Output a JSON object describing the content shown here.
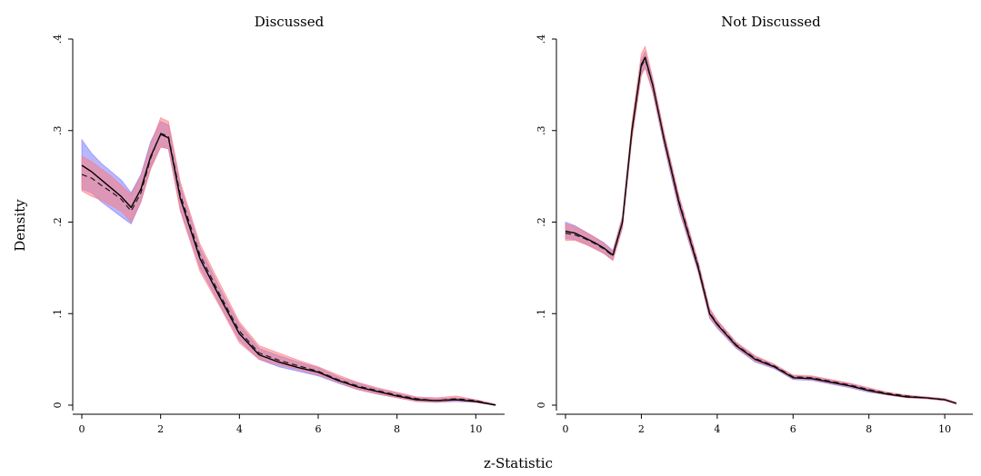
{
  "figure": {
    "shared_xlabel": "z-Statistic",
    "shared_ylabel": "Density"
  },
  "colors": {
    "band_blue": "#7b7bff",
    "band_red": "#ff7b7b",
    "band_overlap": "#a0529a",
    "line_solid": "#000000",
    "line_dashed": "#1a1a1a"
  },
  "chart_data": [
    {
      "type": "area",
      "title": "Discussed",
      "xlabel": "z-Statistic",
      "ylabel": "Density",
      "xlim": [
        0,
        10.5
      ],
      "ylim": [
        0,
        0.4
      ],
      "x_ticks": [
        0,
        2,
        4,
        6,
        8,
        10
      ],
      "x_tick_labels": [
        "0",
        "2",
        "4",
        "6",
        "8",
        "10"
      ],
      "y_ticks": [
        0,
        0.1,
        0.2,
        0.3,
        0.4
      ],
      "y_tick_labels": [
        "0",
        ".1",
        ".2",
        ".3",
        ".4"
      ],
      "series": [
        {
          "style": "solid",
          "x": [
            0,
            0.25,
            0.5,
            0.75,
            1.0,
            1.25,
            1.5,
            1.75,
            2.0,
            2.2,
            2.5,
            3.0,
            3.5,
            4.0,
            4.5,
            5.0,
            5.5,
            6.0,
            6.5,
            7.0,
            7.5,
            8.0,
            8.5,
            9.0,
            9.5,
            10.0,
            10.5
          ],
          "y": [
            0.262,
            0.255,
            0.246,
            0.237,
            0.228,
            0.216,
            0.236,
            0.272,
            0.296,
            0.292,
            0.226,
            0.16,
            0.118,
            0.078,
            0.055,
            0.047,
            0.041,
            0.036,
            0.027,
            0.02,
            0.015,
            0.01,
            0.006,
            0.005,
            0.006,
            0.004,
            0.0
          ]
        },
        {
          "style": "dashed",
          "x": [
            0,
            0.25,
            0.5,
            0.75,
            1.0,
            1.25,
            1.5,
            1.75,
            2.0,
            2.2,
            2.5,
            3.0,
            3.5,
            4.0,
            4.5,
            5.0,
            5.5,
            6.0,
            6.5,
            7.0,
            7.5,
            8.0,
            8.5,
            9.0,
            9.5,
            10.0,
            10.5
          ],
          "y": [
            0.252,
            0.248,
            0.24,
            0.233,
            0.225,
            0.212,
            0.232,
            0.27,
            0.297,
            0.294,
            0.23,
            0.164,
            0.121,
            0.081,
            0.057,
            0.049,
            0.043,
            0.037,
            0.028,
            0.021,
            0.016,
            0.011,
            0.007,
            0.005,
            0.007,
            0.005,
            0.0
          ]
        }
      ],
      "bands": [
        {
          "color": "blue",
          "x": [
            0,
            0.25,
            0.5,
            0.75,
            1.0,
            1.25,
            1.5,
            1.75,
            2.0,
            2.2,
            2.5,
            3.0,
            3.5,
            4.0,
            4.5,
            5.0,
            5.5,
            6.0,
            6.5,
            7.0,
            7.5,
            8.0,
            8.5,
            9.0,
            9.5,
            10.0,
            10.5
          ],
          "lower": [
            0.236,
            0.232,
            0.222,
            0.214,
            0.206,
            0.198,
            0.222,
            0.26,
            0.282,
            0.28,
            0.214,
            0.15,
            0.11,
            0.071,
            0.05,
            0.042,
            0.037,
            0.032,
            0.024,
            0.017,
            0.012,
            0.008,
            0.004,
            0.003,
            0.004,
            0.003,
            0.0
          ],
          "upper": [
            0.29,
            0.275,
            0.264,
            0.255,
            0.246,
            0.232,
            0.252,
            0.288,
            0.31,
            0.306,
            0.24,
            0.172,
            0.128,
            0.088,
            0.062,
            0.054,
            0.047,
            0.041,
            0.031,
            0.024,
            0.018,
            0.013,
            0.008,
            0.007,
            0.008,
            0.006,
            0.001
          ]
        },
        {
          "color": "red",
          "x": [
            0,
            0.25,
            0.5,
            0.75,
            1.0,
            1.25,
            1.5,
            1.75,
            2.0,
            2.2,
            2.5,
            3.0,
            3.5,
            4.0,
            4.5,
            5.0,
            5.5,
            6.0,
            6.5,
            7.0,
            7.5,
            8.0,
            8.5,
            9.0,
            9.5,
            10.0,
            10.5
          ],
          "lower": [
            0.234,
            0.228,
            0.224,
            0.218,
            0.212,
            0.2,
            0.222,
            0.258,
            0.282,
            0.28,
            0.212,
            0.146,
            0.108,
            0.068,
            0.05,
            0.044,
            0.039,
            0.033,
            0.025,
            0.017,
            0.012,
            0.008,
            0.004,
            0.003,
            0.005,
            0.003,
            0.0
          ],
          "upper": [
            0.272,
            0.266,
            0.258,
            0.25,
            0.24,
            0.23,
            0.25,
            0.285,
            0.314,
            0.31,
            0.244,
            0.176,
            0.133,
            0.091,
            0.065,
            0.057,
            0.049,
            0.042,
            0.033,
            0.025,
            0.019,
            0.014,
            0.009,
            0.008,
            0.01,
            0.006,
            0.001
          ]
        }
      ]
    },
    {
      "type": "area",
      "title": "Not Discussed",
      "xlabel": "z-Statistic",
      "ylabel": "Density",
      "xlim": [
        0,
        10.5
      ],
      "ylim": [
        0,
        0.4
      ],
      "x_ticks": [
        0,
        2,
        4,
        6,
        8,
        10
      ],
      "x_tick_labels": [
        "0",
        "2",
        "4",
        "6",
        "8",
        "10"
      ],
      "y_ticks": [
        0,
        0.1,
        0.2,
        0.3,
        0.4
      ],
      "y_tick_labels": [
        "0",
        ".1",
        ".2",
        ".3",
        ".4"
      ],
      "series": [
        {
          "style": "solid",
          "x": [
            0,
            0.25,
            0.5,
            0.75,
            1.0,
            1.25,
            1.5,
            1.75,
            2.0,
            2.1,
            2.3,
            2.6,
            3.0,
            3.5,
            3.8,
            4.0,
            4.5,
            5.0,
            5.5,
            6.0,
            6.5,
            7.0,
            7.5,
            8.0,
            8.5,
            9.0,
            9.5,
            10.0,
            10.3
          ],
          "y": [
            0.19,
            0.188,
            0.183,
            0.178,
            0.172,
            0.164,
            0.2,
            0.3,
            0.372,
            0.38,
            0.35,
            0.29,
            0.22,
            0.15,
            0.1,
            0.088,
            0.065,
            0.05,
            0.042,
            0.03,
            0.029,
            0.025,
            0.021,
            0.016,
            0.012,
            0.009,
            0.008,
            0.006,
            0.002
          ]
        },
        {
          "style": "dashed",
          "x": [
            0,
            0.25,
            0.5,
            0.75,
            1.0,
            1.25,
            1.5,
            1.75,
            2.0,
            2.1,
            2.3,
            2.6,
            3.0,
            3.5,
            3.8,
            4.0,
            4.5,
            5.0,
            5.5,
            6.0,
            6.5,
            7.0,
            7.5,
            8.0,
            8.5,
            9.0,
            9.5,
            10.0,
            10.3
          ],
          "y": [
            0.188,
            0.186,
            0.182,
            0.177,
            0.171,
            0.163,
            0.199,
            0.298,
            0.37,
            0.378,
            0.349,
            0.291,
            0.222,
            0.152,
            0.101,
            0.089,
            0.066,
            0.051,
            0.043,
            0.031,
            0.03,
            0.026,
            0.022,
            0.017,
            0.013,
            0.01,
            0.008,
            0.006,
            0.002
          ]
        }
      ],
      "bands": [
        {
          "color": "blue",
          "x": [
            0,
            0.25,
            0.5,
            0.75,
            1.0,
            1.25,
            1.5,
            1.75,
            2.0,
            2.1,
            2.3,
            2.6,
            3.0,
            3.5,
            3.8,
            4.0,
            4.5,
            5.0,
            5.5,
            6.0,
            6.5,
            7.0,
            7.5,
            8.0,
            8.5,
            9.0,
            9.5,
            10.0,
            10.3
          ],
          "lower": [
            0.182,
            0.181,
            0.177,
            0.172,
            0.166,
            0.159,
            0.194,
            0.292,
            0.362,
            0.37,
            0.342,
            0.283,
            0.212,
            0.145,
            0.095,
            0.084,
            0.062,
            0.047,
            0.04,
            0.028,
            0.027,
            0.023,
            0.019,
            0.014,
            0.011,
            0.008,
            0.007,
            0.005,
            0.001
          ],
          "upper": [
            0.2,
            0.196,
            0.19,
            0.184,
            0.178,
            0.169,
            0.206,
            0.306,
            0.378,
            0.386,
            0.356,
            0.296,
            0.226,
            0.156,
            0.105,
            0.092,
            0.068,
            0.053,
            0.044,
            0.032,
            0.031,
            0.027,
            0.023,
            0.018,
            0.013,
            0.01,
            0.009,
            0.007,
            0.003
          ]
        },
        {
          "color": "red",
          "x": [
            0,
            0.25,
            0.5,
            0.75,
            1.0,
            1.25,
            1.5,
            1.75,
            2.0,
            2.1,
            2.3,
            2.6,
            3.0,
            3.5,
            3.8,
            4.0,
            4.5,
            5.0,
            5.5,
            6.0,
            6.5,
            7.0,
            7.5,
            8.0,
            8.5,
            9.0,
            9.5,
            10.0,
            10.3
          ],
          "lower": [
            0.18,
            0.18,
            0.176,
            0.171,
            0.166,
            0.158,
            0.193,
            0.29,
            0.36,
            0.368,
            0.342,
            0.285,
            0.214,
            0.146,
            0.096,
            0.085,
            0.063,
            0.048,
            0.041,
            0.029,
            0.028,
            0.024,
            0.02,
            0.015,
            0.011,
            0.008,
            0.007,
            0.005,
            0.001
          ],
          "upper": [
            0.198,
            0.195,
            0.19,
            0.184,
            0.177,
            0.168,
            0.206,
            0.308,
            0.384,
            0.392,
            0.358,
            0.298,
            0.228,
            0.157,
            0.106,
            0.093,
            0.069,
            0.054,
            0.045,
            0.033,
            0.032,
            0.028,
            0.024,
            0.019,
            0.014,
            0.011,
            0.009,
            0.007,
            0.003
          ]
        }
      ]
    }
  ]
}
